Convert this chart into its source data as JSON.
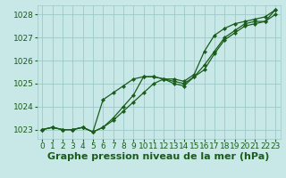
{
  "title": "Graphe pression niveau de la mer (hPa)",
  "background_color": "#c8e8e8",
  "grid_color": "#a0c8c8",
  "line_color": "#1a5c1a",
  "xlim": [
    -0.5,
    23.5
  ],
  "ylim": [
    1022.6,
    1028.4
  ],
  "yticks": [
    1023,
    1024,
    1025,
    1026,
    1027,
    1028
  ],
  "xticks": [
    0,
    1,
    2,
    3,
    4,
    5,
    6,
    7,
    8,
    9,
    10,
    11,
    12,
    13,
    14,
    15,
    16,
    17,
    18,
    19,
    20,
    21,
    22,
    23
  ],
  "series": [
    [
      1023.0,
      1023.1,
      1023.0,
      1023.0,
      1023.1,
      1022.9,
      1024.3,
      1024.6,
      1024.9,
      1025.2,
      1025.3,
      1025.3,
      1025.2,
      1025.1,
      1025.0,
      1025.3,
      1025.8,
      1026.4,
      1027.0,
      1027.3,
      1027.6,
      1027.7,
      1027.7,
      1028.2
    ],
    [
      1023.0,
      1023.1,
      1023.0,
      1023.0,
      1023.1,
      1022.9,
      1023.1,
      1023.4,
      1023.8,
      1024.2,
      1024.6,
      1025.0,
      1025.2,
      1025.2,
      1025.1,
      1025.4,
      1026.4,
      1027.1,
      1027.4,
      1027.6,
      1027.7,
      1027.8,
      1027.9,
      1028.2
    ],
    [
      1023.0,
      1023.1,
      1023.0,
      1023.0,
      1023.1,
      1022.9,
      1023.1,
      1023.5,
      1024.0,
      1024.5,
      1025.3,
      1025.3,
      1025.2,
      1025.0,
      1024.9,
      1025.3,
      1025.6,
      1026.3,
      1026.9,
      1027.2,
      1027.5,
      1027.6,
      1027.7,
      1028.0
    ]
  ],
  "title_fontsize": 8,
  "tick_fontsize": 6.5,
  "title_color": "#1a5c1a",
  "tick_color": "#1a5c1a"
}
